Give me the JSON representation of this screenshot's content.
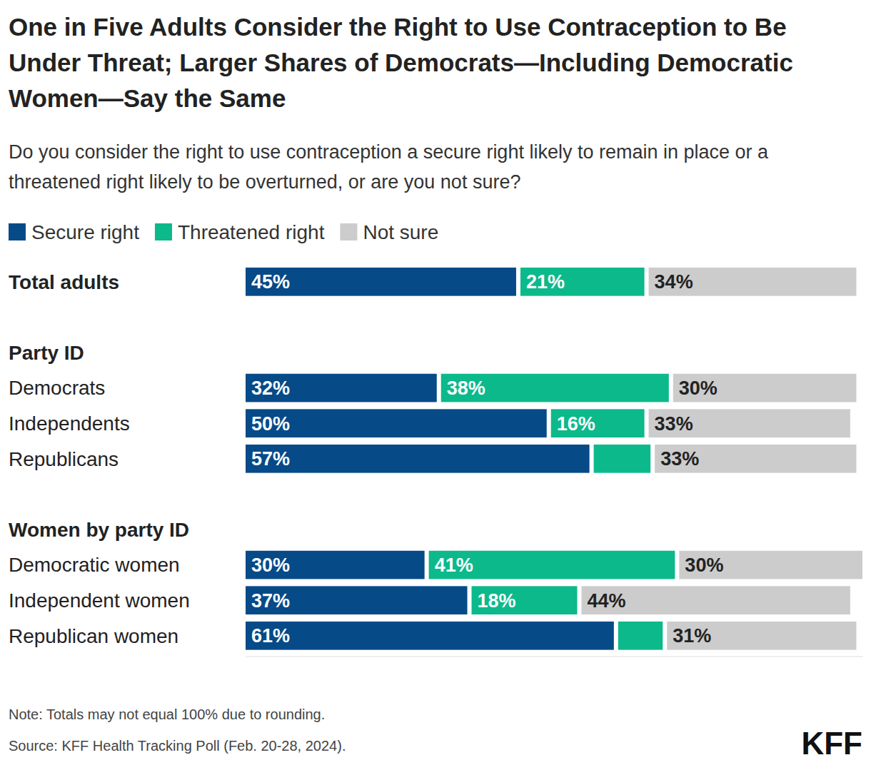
{
  "chart_data": {
    "type": "bar",
    "orientation": "horizontal",
    "stacked": true,
    "data_labels": true,
    "tick_labels": false,
    "title": "One in Five Adults Consider the Right to Use Contraception to Be Under Threat; Larger Shares of Democrats—Including Democratic Women—Say the Same",
    "subtitle": "Do you consider the right to use contraception a secure right likely to remain in place or a threatened right likely to be overturned, or are you not sure?",
    "categories": [
      "Total adults",
      "Democrats",
      "Independents",
      "Republicans",
      "Democratic women",
      "Independent women",
      "Republican women"
    ],
    "groups": [
      {
        "name": "Party ID",
        "members": [
          "Democrats",
          "Independents",
          "Republicans"
        ]
      },
      {
        "name": "Women by party ID",
        "members": [
          "Democratic women",
          "Independent women",
          "Republican women"
        ]
      }
    ],
    "series": [
      {
        "name": "Secure right",
        "color": "#064a88",
        "values": [
          45,
          32,
          50,
          57,
          30,
          37,
          61
        ],
        "value_labels": [
          "45%",
          "32%",
          "50%",
          "57%",
          "30%",
          "37%",
          "61%"
        ]
      },
      {
        "name": "Threatened right",
        "color": "#0cb98b",
        "values": [
          21,
          38,
          16,
          10,
          41,
          18,
          8
        ],
        "value_labels": [
          "21%",
          "38%",
          "16%",
          null,
          "41%",
          "18%",
          null
        ]
      },
      {
        "name": "Not sure",
        "color": "#cccccc",
        "values": [
          34,
          30,
          33,
          33,
          30,
          44,
          31
        ],
        "value_labels": [
          "34%",
          "30%",
          "33%",
          "33%",
          "30%",
          "44%",
          "31%"
        ]
      }
    ],
    "xlim": [
      0,
      101
    ],
    "xticks": [],
    "legend": "top-left",
    "note": "Note: Totals may not equal 100% due to rounding.",
    "source": "Source: KFF Health Tracking Poll (Feb. 20-28, 2024).",
    "logo": "KFF"
  }
}
